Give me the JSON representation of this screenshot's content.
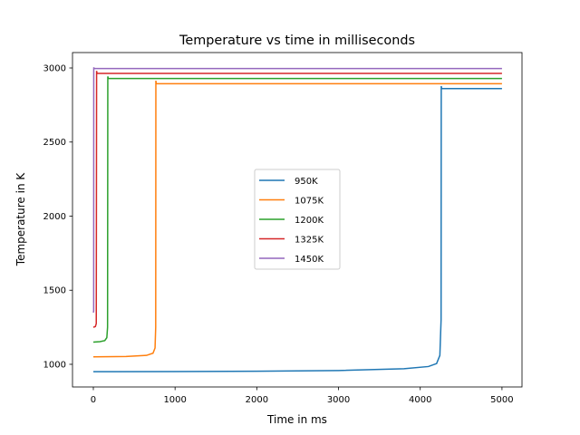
{
  "chart_data": {
    "type": "line",
    "title": "Temperature vs time in milliseconds",
    "xlabel": "Time in ms",
    "ylabel": "Temperature in K",
    "xlim": [
      -255,
      5245
    ],
    "ylim": [
      847,
      3104
    ],
    "xticks": [
      0,
      1000,
      2000,
      3000,
      4000,
      5000
    ],
    "yticks": [
      1000,
      1500,
      2000,
      2500,
      3000
    ],
    "grid": false,
    "legend": "center",
    "series": [
      {
        "name": "950K",
        "color": "#1f77b4",
        "points": [
          [
            0,
            950
          ],
          [
            1000,
            951
          ],
          [
            2000,
            953
          ],
          [
            3000,
            958
          ],
          [
            3800,
            970
          ],
          [
            4100,
            985
          ],
          [
            4200,
            1005
          ],
          [
            4240,
            1060
          ],
          [
            4255,
            1300
          ],
          [
            4257,
            2878
          ],
          [
            4262,
            2861
          ],
          [
            5000,
            2861
          ]
        ]
      },
      {
        "name": "1075K",
        "color": "#ff7f0e",
        "points": [
          [
            0,
            1050
          ],
          [
            400,
            1053
          ],
          [
            650,
            1060
          ],
          [
            730,
            1075
          ],
          [
            755,
            1110
          ],
          [
            763,
            1250
          ],
          [
            765,
            2914
          ],
          [
            770,
            2894
          ],
          [
            5000,
            2894
          ]
        ]
      },
      {
        "name": "1200K",
        "color": "#2ca02c",
        "points": [
          [
            0,
            1150
          ],
          [
            80,
            1153
          ],
          [
            140,
            1160
          ],
          [
            165,
            1180
          ],
          [
            174,
            1250
          ],
          [
            177,
            2943
          ],
          [
            182,
            2929
          ],
          [
            5000,
            2929
          ]
        ]
      },
      {
        "name": "1325K",
        "color": "#d62728",
        "points": [
          [
            0,
            1250
          ],
          [
            25,
            1255
          ],
          [
            36,
            1275
          ],
          [
            40,
            2980
          ],
          [
            45,
            2963
          ],
          [
            5000,
            2963
          ]
        ]
      },
      {
        "name": "1450K",
        "color": "#9467bd",
        "points": [
          [
            0,
            1349
          ],
          [
            4,
            1360
          ],
          [
            5,
            3004
          ],
          [
            10,
            2996
          ],
          [
            5000,
            2996
          ]
        ]
      }
    ]
  }
}
